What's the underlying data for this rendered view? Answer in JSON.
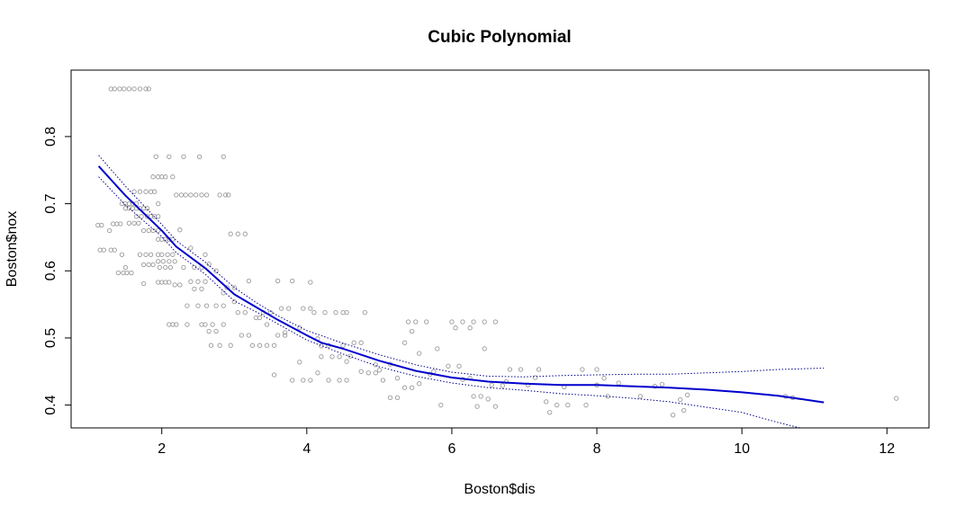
{
  "chart_data": {
    "type": "scatter",
    "title": "Cubic Polynomial",
    "xlabel": "Boston$dis",
    "ylabel": "Boston$nox",
    "xlim": [
      0.75,
      12.58
    ],
    "ylim": [
      0.366,
      0.899
    ],
    "xticks": [
      2,
      4,
      6,
      8,
      10,
      12
    ],
    "yticks": [
      0.4,
      0.5,
      0.6,
      0.7,
      0.8
    ],
    "grid": false,
    "colors": {
      "points": "#9a9a9a",
      "fit": "#0000cd",
      "band": "#00008b"
    },
    "points": [
      [
        1.3,
        0.871
      ],
      [
        1.35,
        0.871
      ],
      [
        1.42,
        0.871
      ],
      [
        1.48,
        0.871
      ],
      [
        1.55,
        0.871
      ],
      [
        1.62,
        0.871
      ],
      [
        1.7,
        0.871
      ],
      [
        1.78,
        0.871
      ],
      [
        1.82,
        0.871
      ],
      [
        1.12,
        0.668
      ],
      [
        1.17,
        0.668
      ],
      [
        1.15,
        0.631
      ],
      [
        1.2,
        0.631
      ],
      [
        1.28,
        0.66
      ],
      [
        1.33,
        0.67
      ],
      [
        1.38,
        0.67
      ],
      [
        1.43,
        0.67
      ],
      [
        1.3,
        0.631
      ],
      [
        1.35,
        0.631
      ],
      [
        1.45,
        0.624
      ],
      [
        1.4,
        0.597
      ],
      [
        1.47,
        0.597
      ],
      [
        1.52,
        0.597
      ],
      [
        1.58,
        0.597
      ],
      [
        1.5,
        0.605
      ],
      [
        1.45,
        0.7
      ],
      [
        1.5,
        0.7
      ],
      [
        1.55,
        0.7
      ],
      [
        1.6,
        0.7
      ],
      [
        1.65,
        0.7
      ],
      [
        1.5,
        0.693
      ],
      [
        1.55,
        0.693
      ],
      [
        1.6,
        0.693
      ],
      [
        1.65,
        0.693
      ],
      [
        1.7,
        0.693
      ],
      [
        1.75,
        0.693
      ],
      [
        1.8,
        0.693
      ],
      [
        1.62,
        0.718
      ],
      [
        1.7,
        0.718
      ],
      [
        1.78,
        0.718
      ],
      [
        1.85,
        0.718
      ],
      [
        1.9,
        0.718
      ],
      [
        1.55,
        0.671
      ],
      [
        1.62,
        0.671
      ],
      [
        1.68,
        0.671
      ],
      [
        1.65,
        0.681
      ],
      [
        1.72,
        0.681
      ],
      [
        1.8,
        0.681
      ],
      [
        1.85,
        0.681
      ],
      [
        1.9,
        0.681
      ],
      [
        1.95,
        0.681
      ],
      [
        1.75,
        0.66
      ],
      [
        1.82,
        0.66
      ],
      [
        1.88,
        0.66
      ],
      [
        1.95,
        0.66
      ],
      [
        1.7,
        0.624
      ],
      [
        1.78,
        0.624
      ],
      [
        1.85,
        0.624
      ],
      [
        1.75,
        0.609
      ],
      [
        1.82,
        0.609
      ],
      [
        1.88,
        0.609
      ],
      [
        1.75,
        0.581
      ],
      [
        1.88,
        0.74
      ],
      [
        1.95,
        0.74
      ],
      [
        2.0,
        0.74
      ],
      [
        2.05,
        0.74
      ],
      [
        2.15,
        0.74
      ],
      [
        1.92,
        0.77
      ],
      [
        2.1,
        0.77
      ],
      [
        2.3,
        0.77
      ],
      [
        2.52,
        0.77
      ],
      [
        2.85,
        0.77
      ],
      [
        1.95,
        0.7
      ],
      [
        1.95,
        0.647
      ],
      [
        2.0,
        0.647
      ],
      [
        2.05,
        0.647
      ],
      [
        2.1,
        0.647
      ],
      [
        2.15,
        0.647
      ],
      [
        1.95,
        0.624
      ],
      [
        2.0,
        0.624
      ],
      [
        2.08,
        0.624
      ],
      [
        2.15,
        0.624
      ],
      [
        1.95,
        0.614
      ],
      [
        2.02,
        0.614
      ],
      [
        2.1,
        0.614
      ],
      [
        2.18,
        0.614
      ],
      [
        1.97,
        0.605
      ],
      [
        2.05,
        0.605
      ],
      [
        2.12,
        0.605
      ],
      [
        1.95,
        0.583
      ],
      [
        2.0,
        0.583
      ],
      [
        2.05,
        0.583
      ],
      [
        2.1,
        0.583
      ],
      [
        2.18,
        0.579
      ],
      [
        2.25,
        0.579
      ],
      [
        2.1,
        0.52
      ],
      [
        2.15,
        0.52
      ],
      [
        2.2,
        0.52
      ],
      [
        2.35,
        0.52
      ],
      [
        2.6,
        0.52
      ],
      [
        2.2,
        0.713
      ],
      [
        2.27,
        0.713
      ],
      [
        2.33,
        0.713
      ],
      [
        2.4,
        0.713
      ],
      [
        2.47,
        0.713
      ],
      [
        2.55,
        0.713
      ],
      [
        2.62,
        0.713
      ],
      [
        2.8,
        0.713
      ],
      [
        2.88,
        0.713
      ],
      [
        2.92,
        0.713
      ],
      [
        2.3,
        0.605
      ],
      [
        2.45,
        0.605
      ],
      [
        2.55,
        0.605
      ],
      [
        2.4,
        0.584
      ],
      [
        2.5,
        0.584
      ],
      [
        2.6,
        0.584
      ],
      [
        2.45,
        0.573
      ],
      [
        2.55,
        0.573
      ],
      [
        2.35,
        0.548
      ],
      [
        2.5,
        0.548
      ],
      [
        2.62,
        0.548
      ],
      [
        2.75,
        0.548
      ],
      [
        2.85,
        0.548
      ],
      [
        2.55,
        0.52
      ],
      [
        2.7,
        0.52
      ],
      [
        2.85,
        0.52
      ],
      [
        2.65,
        0.51
      ],
      [
        2.75,
        0.51
      ],
      [
        2.68,
        0.489
      ],
      [
        2.8,
        0.489
      ],
      [
        2.95,
        0.489
      ],
      [
        2.6,
        0.624
      ],
      [
        2.75,
        0.6
      ],
      [
        2.9,
        0.575
      ],
      [
        3.0,
        0.575
      ],
      [
        3.05,
        0.655
      ],
      [
        2.95,
        0.655
      ],
      [
        3.15,
        0.655
      ],
      [
        3.05,
        0.538
      ],
      [
        3.15,
        0.538
      ],
      [
        3.1,
        0.504
      ],
      [
        3.2,
        0.504
      ],
      [
        3.25,
        0.489
      ],
      [
        3.35,
        0.489
      ],
      [
        3.45,
        0.489
      ],
      [
        3.55,
        0.489
      ],
      [
        3.6,
        0.504
      ],
      [
        3.7,
        0.504
      ],
      [
        3.4,
        0.538
      ],
      [
        3.5,
        0.538
      ],
      [
        3.2,
        0.585
      ],
      [
        3.35,
        0.53
      ],
      [
        3.6,
        0.585
      ],
      [
        3.8,
        0.585
      ],
      [
        3.65,
        0.544
      ],
      [
        3.75,
        0.544
      ],
      [
        3.95,
        0.544
      ],
      [
        4.05,
        0.544
      ],
      [
        4.1,
        0.538
      ],
      [
        4.25,
        0.538
      ],
      [
        4.4,
        0.538
      ],
      [
        4.5,
        0.538
      ],
      [
        4.55,
        0.538
      ],
      [
        4.05,
        0.583
      ],
      [
        3.55,
        0.445
      ],
      [
        3.8,
        0.437
      ],
      [
        3.95,
        0.437
      ],
      [
        4.05,
        0.437
      ],
      [
        4.15,
        0.448
      ],
      [
        4.3,
        0.437
      ],
      [
        4.45,
        0.437
      ],
      [
        4.55,
        0.437
      ],
      [
        4.2,
        0.472
      ],
      [
        4.35,
        0.472
      ],
      [
        4.45,
        0.472
      ],
      [
        3.9,
        0.464
      ],
      [
        4.15,
        0.499
      ],
      [
        4.3,
        0.489
      ],
      [
        4.5,
        0.489
      ],
      [
        4.65,
        0.493
      ],
      [
        4.75,
        0.493
      ],
      [
        4.8,
        0.538
      ],
      [
        4.75,
        0.45
      ],
      [
        4.85,
        0.448
      ],
      [
        4.95,
        0.448
      ],
      [
        5.05,
        0.437
      ],
      [
        5.15,
        0.411
      ],
      [
        5.25,
        0.411
      ],
      [
        5.35,
        0.426
      ],
      [
        5.45,
        0.426
      ],
      [
        5.55,
        0.432
      ],
      [
        5.35,
        0.493
      ],
      [
        5.4,
        0.524
      ],
      [
        5.5,
        0.524
      ],
      [
        5.65,
        0.524
      ],
      [
        5.45,
        0.51
      ],
      [
        5.8,
        0.484
      ],
      [
        6.0,
        0.524
      ],
      [
        6.15,
        0.524
      ],
      [
        6.3,
        0.524
      ],
      [
        6.45,
        0.524
      ],
      [
        6.6,
        0.524
      ],
      [
        6.05,
        0.515
      ],
      [
        6.25,
        0.515
      ],
      [
        6.45,
        0.484
      ],
      [
        5.95,
        0.458
      ],
      [
        6.1,
        0.458
      ],
      [
        6.25,
        0.44
      ],
      [
        6.3,
        0.413
      ],
      [
        6.4,
        0.413
      ],
      [
        5.85,
        0.4
      ],
      [
        6.35,
        0.398
      ],
      [
        6.6,
        0.398
      ],
      [
        6.5,
        0.409
      ],
      [
        6.55,
        0.43
      ],
      [
        6.7,
        0.429
      ],
      [
        6.8,
        0.453
      ],
      [
        6.95,
        0.453
      ],
      [
        7.2,
        0.453
      ],
      [
        7.05,
        0.43
      ],
      [
        7.3,
        0.405
      ],
      [
        7.35,
        0.389
      ],
      [
        7.45,
        0.4
      ],
      [
        7.6,
        0.4
      ],
      [
        7.85,
        0.4
      ],
      [
        7.8,
        0.453
      ],
      [
        8.0,
        0.453
      ],
      [
        8.0,
        0.43
      ],
      [
        8.1,
        0.44
      ],
      [
        8.15,
        0.413
      ],
      [
        8.3,
        0.433
      ],
      [
        8.6,
        0.413
      ],
      [
        8.8,
        0.428
      ],
      [
        8.9,
        0.431
      ],
      [
        9.05,
        0.385
      ],
      [
        9.2,
        0.392
      ],
      [
        9.25,
        0.415
      ],
      [
        9.15,
        0.408
      ],
      [
        10.6,
        0.413
      ],
      [
        10.7,
        0.411
      ],
      [
        12.13,
        0.41
      ],
      [
        5.55,
        0.477
      ],
      [
        5.7,
        0.446
      ],
      [
        5.15,
        0.461
      ],
      [
        5.25,
        0.44
      ],
      [
        4.95,
        0.46
      ],
      [
        3.45,
        0.52
      ],
      [
        3.9,
        0.515
      ],
      [
        4.55,
        0.465
      ],
      [
        5.0,
        0.452
      ],
      [
        5.75,
        0.45
      ],
      [
        6.15,
        0.438
      ],
      [
        6.75,
        0.435
      ],
      [
        7.15,
        0.441
      ],
      [
        7.55,
        0.427
      ],
      [
        2.25,
        0.661
      ],
      [
        2.4,
        0.634
      ],
      [
        2.65,
        0.61
      ],
      [
        2.85,
        0.567
      ],
      [
        3.0,
        0.554
      ],
      [
        3.3,
        0.53
      ],
      [
        3.7,
        0.508
      ],
      [
        4.2,
        0.488
      ],
      [
        4.6,
        0.473
      ]
    ],
    "fit_line": [
      [
        1.13,
        0.756
      ],
      [
        1.5,
        0.712
      ],
      [
        2.0,
        0.66
      ],
      [
        2.2,
        0.636
      ],
      [
        2.6,
        0.604
      ],
      [
        3.0,
        0.565
      ],
      [
        3.3,
        0.546
      ],
      [
        3.6,
        0.527
      ],
      [
        4.0,
        0.504
      ],
      [
        4.2,
        0.493
      ],
      [
        4.5,
        0.484
      ],
      [
        5.0,
        0.466
      ],
      [
        5.5,
        0.451
      ],
      [
        6.0,
        0.441
      ],
      [
        6.5,
        0.435
      ],
      [
        7.0,
        0.432
      ],
      [
        7.5,
        0.43
      ],
      [
        8.0,
        0.43
      ],
      [
        8.5,
        0.428
      ],
      [
        9.0,
        0.426
      ],
      [
        9.5,
        0.423
      ],
      [
        10.0,
        0.419
      ],
      [
        10.5,
        0.414
      ],
      [
        11.13,
        0.404
      ]
    ],
    "upper_band": [
      [
        1.13,
        0.772
      ],
      [
        1.5,
        0.726
      ],
      [
        2.0,
        0.669
      ],
      [
        2.2,
        0.645
      ],
      [
        2.6,
        0.613
      ],
      [
        3.0,
        0.575
      ],
      [
        3.3,
        0.553
      ],
      [
        3.6,
        0.533
      ],
      [
        4.0,
        0.511
      ],
      [
        4.5,
        0.492
      ],
      [
        5.0,
        0.475
      ],
      [
        5.5,
        0.46
      ],
      [
        6.0,
        0.449
      ],
      [
        6.5,
        0.443
      ],
      [
        7.0,
        0.442
      ],
      [
        7.5,
        0.444
      ],
      [
        8.0,
        0.445
      ],
      [
        8.5,
        0.446
      ],
      [
        9.0,
        0.446
      ],
      [
        9.5,
        0.448
      ],
      [
        10.0,
        0.45
      ],
      [
        10.5,
        0.453
      ],
      [
        11.13,
        0.455
      ]
    ],
    "lower_band": [
      [
        1.13,
        0.74
      ],
      [
        1.5,
        0.698
      ],
      [
        2.0,
        0.651
      ],
      [
        2.2,
        0.627
      ],
      [
        2.6,
        0.595
      ],
      [
        3.0,
        0.555
      ],
      [
        3.3,
        0.539
      ],
      [
        3.6,
        0.521
      ],
      [
        4.0,
        0.497
      ],
      [
        4.5,
        0.476
      ],
      [
        5.0,
        0.457
      ],
      [
        5.5,
        0.443
      ],
      [
        6.0,
        0.433
      ],
      [
        6.5,
        0.426
      ],
      [
        7.0,
        0.422
      ],
      [
        7.5,
        0.417
      ],
      [
        8.0,
        0.414
      ],
      [
        8.5,
        0.41
      ],
      [
        9.0,
        0.405
      ],
      [
        9.5,
        0.397
      ],
      [
        10.0,
        0.389
      ],
      [
        10.5,
        0.374
      ],
      [
        10.8,
        0.366
      ]
    ]
  }
}
